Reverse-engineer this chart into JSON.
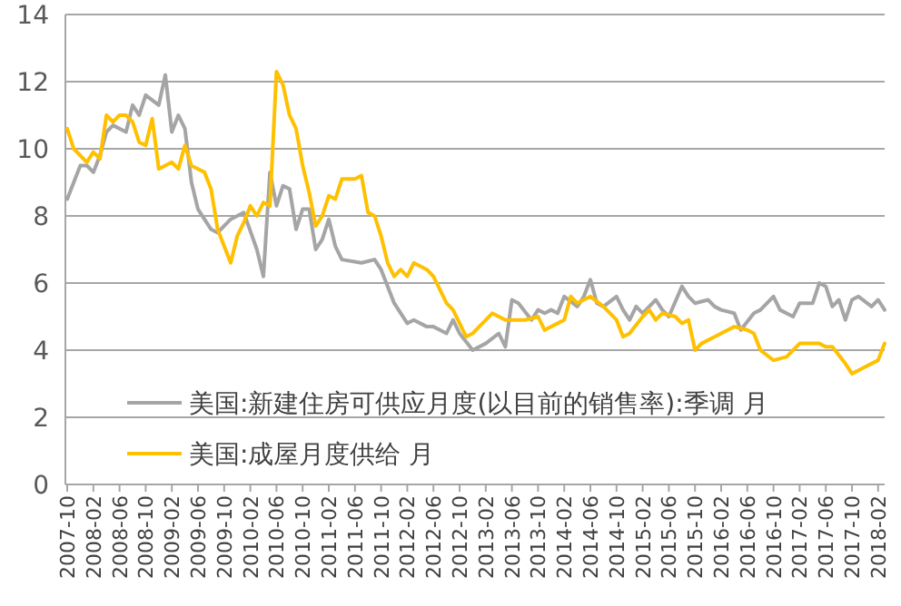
{
  "chart_data": {
    "type": "line",
    "xlim": [
      "2007-10",
      "2018-03"
    ],
    "xticks": [
      "2007-10",
      "2008-02",
      "2008-06",
      "2008-10",
      "2009-02",
      "2009-06",
      "2009-10",
      "2010-02",
      "2010-06",
      "2010-10",
      "2011-02",
      "2011-06",
      "2011-10",
      "2012-02",
      "2012-06",
      "2012-10",
      "2013-02",
      "2013-06",
      "2013-10",
      "2014-02",
      "2014-06",
      "2014-10",
      "2015-02",
      "2015-06",
      "2015-10",
      "2016-02",
      "2016-06",
      "2016-10",
      "2017-02",
      "2017-06",
      "2017-10",
      "2018-02"
    ],
    "ylim": [
      0,
      14
    ],
    "yticks": [
      0,
      2,
      4,
      6,
      8,
      10,
      12,
      14
    ],
    "grid": "y",
    "legend": "bottom",
    "line_style": "solid",
    "series": [
      {
        "name": "美国:新建住房可供应月度(以目前的销售率):季调 月",
        "color": "#a5a5a5",
        "x": [
          "2007-10",
          "2007-12",
          "2008-01",
          "2008-02",
          "2008-03",
          "2008-04",
          "2008-05",
          "2008-07",
          "2008-08",
          "2008-09",
          "2008-10",
          "2008-12",
          "2009-01",
          "2009-02",
          "2009-03",
          "2009-04",
          "2009-05",
          "2009-06",
          "2009-08",
          "2009-09",
          "2009-11",
          "2010-01",
          "2010-03",
          "2010-04",
          "2010-05",
          "2010-06",
          "2010-07",
          "2010-08",
          "2010-09",
          "2010-10",
          "2010-11",
          "2010-12",
          "2011-01",
          "2011-02",
          "2011-03",
          "2011-04",
          "2011-07",
          "2011-09",
          "2011-10",
          "2011-11",
          "2011-12",
          "2012-02",
          "2012-03",
          "2012-05",
          "2012-06",
          "2012-07",
          "2012-08",
          "2012-09",
          "2012-10",
          "2012-12",
          "2013-02",
          "2013-04",
          "2013-05",
          "2013-06",
          "2013-07",
          "2013-09",
          "2013-10",
          "2013-11",
          "2013-12",
          "2014-01",
          "2014-02",
          "2014-04",
          "2014-05",
          "2014-06",
          "2014-07",
          "2014-08",
          "2014-10",
          "2014-11",
          "2014-12",
          "2015-01",
          "2015-02",
          "2015-04",
          "2015-05",
          "2015-06",
          "2015-08",
          "2015-09",
          "2015-10",
          "2015-12",
          "2016-01",
          "2016-02",
          "2016-04",
          "2016-05",
          "2016-07",
          "2016-08",
          "2016-10",
          "2016-11",
          "2017-01",
          "2017-02",
          "2017-04",
          "2017-05",
          "2017-06",
          "2017-07",
          "2017-08",
          "2017-09",
          "2017-10",
          "2017-11",
          "2018-01",
          "2018-02",
          "2018-03"
        ],
        "values": [
          8.5,
          9.5,
          9.5,
          9.3,
          9.8,
          10.5,
          10.7,
          10.5,
          11.3,
          11.0,
          11.6,
          11.3,
          12.2,
          10.5,
          11.0,
          10.6,
          9.0,
          8.2,
          7.6,
          7.5,
          7.9,
          8.1,
          7.0,
          6.2,
          9.3,
          8.3,
          8.9,
          8.8,
          7.6,
          8.2,
          8.2,
          7.0,
          7.3,
          7.9,
          7.1,
          6.7,
          6.6,
          6.7,
          6.4,
          5.9,
          5.4,
          4.8,
          4.9,
          4.7,
          4.7,
          4.6,
          4.5,
          4.9,
          4.5,
          4.0,
          4.2,
          4.5,
          4.1,
          5.5,
          5.4,
          4.9,
          5.2,
          5.1,
          5.2,
          5.1,
          5.6,
          5.3,
          5.6,
          6.1,
          5.4,
          5.3,
          5.6,
          5.2,
          4.9,
          5.3,
          5.1,
          5.5,
          5.2,
          5.0,
          5.9,
          5.6,
          5.4,
          5.5,
          5.3,
          5.2,
          5.1,
          4.6,
          5.1,
          5.2,
          5.6,
          5.2,
          5.0,
          5.4,
          5.4,
          6.0,
          5.9,
          5.3,
          5.5,
          4.9,
          5.5,
          5.6,
          5.3,
          5.5,
          5.2
        ]
      },
      {
        "name": "美国:成屋月度供给 月",
        "color": "#ffc000",
        "x": [
          "2007-10",
          "2007-11",
          "2008-01",
          "2008-02",
          "2008-03",
          "2008-04",
          "2008-05",
          "2008-06",
          "2008-07",
          "2008-08",
          "2008-09",
          "2008-10",
          "2008-11",
          "2008-12",
          "2009-01",
          "2009-02",
          "2009-03",
          "2009-04",
          "2009-05",
          "2009-06",
          "2009-07",
          "2009-08",
          "2009-09",
          "2009-11",
          "2009-12",
          "2010-01",
          "2010-02",
          "2010-03",
          "2010-04",
          "2010-05",
          "2010-06",
          "2010-07",
          "2010-08",
          "2010-09",
          "2010-10",
          "2010-11",
          "2010-12",
          "2011-01",
          "2011-02",
          "2011-03",
          "2011-04",
          "2011-05",
          "2011-06",
          "2011-07",
          "2011-08",
          "2011-09",
          "2011-10",
          "2011-11",
          "2011-12",
          "2012-01",
          "2012-02",
          "2012-03",
          "2012-04",
          "2012-05",
          "2012-06",
          "2012-07",
          "2012-08",
          "2012-09",
          "2012-11",
          "2012-12",
          "2013-01",
          "2013-03",
          "2013-05",
          "2013-08",
          "2013-10",
          "2013-11",
          "2014-01",
          "2014-02",
          "2014-03",
          "2014-04",
          "2014-06",
          "2014-08",
          "2014-10",
          "2014-11",
          "2014-12",
          "2015-02",
          "2015-03",
          "2015-04",
          "2015-05",
          "2015-07",
          "2015-08",
          "2015-09",
          "2015-10",
          "2015-11",
          "2016-01",
          "2016-03",
          "2016-04",
          "2016-06",
          "2016-07",
          "2016-08",
          "2016-10",
          "2016-12",
          "2017-02",
          "2017-03",
          "2017-05",
          "2017-06",
          "2017-07",
          "2017-09",
          "2017-10",
          "2017-11",
          "2017-12",
          "2018-02",
          "2018-03"
        ],
        "values": [
          10.6,
          10.0,
          9.6,
          9.9,
          9.7,
          11.0,
          10.8,
          11.0,
          11.0,
          10.8,
          10.2,
          10.1,
          10.9,
          9.4,
          9.5,
          9.6,
          9.4,
          10.1,
          9.5,
          9.4,
          9.3,
          8.8,
          7.6,
          6.6,
          7.4,
          7.8,
          8.3,
          8.0,
          8.4,
          8.3,
          12.3,
          11.9,
          11.0,
          10.6,
          9.5,
          8.7,
          7.7,
          8.0,
          8.6,
          8.5,
          9.1,
          9.1,
          9.1,
          9.2,
          8.1,
          8.0,
          7.4,
          6.6,
          6.2,
          6.4,
          6.2,
          6.6,
          6.5,
          6.4,
          6.2,
          5.8,
          5.4,
          5.2,
          4.4,
          4.5,
          4.7,
          5.1,
          4.9,
          4.9,
          5.0,
          4.6,
          4.8,
          4.9,
          5.6,
          5.4,
          5.6,
          5.3,
          4.9,
          4.4,
          4.5,
          5.0,
          5.2,
          4.9,
          5.1,
          5.0,
          4.8,
          4.9,
          4.0,
          4.2,
          4.4,
          4.6,
          4.7,
          4.6,
          4.5,
          4.0,
          3.7,
          3.8,
          4.2,
          4.2,
          4.2,
          4.1,
          4.1,
          3.6,
          3.3,
          3.4,
          3.5,
          3.7,
          4.2
        ]
      }
    ]
  }
}
